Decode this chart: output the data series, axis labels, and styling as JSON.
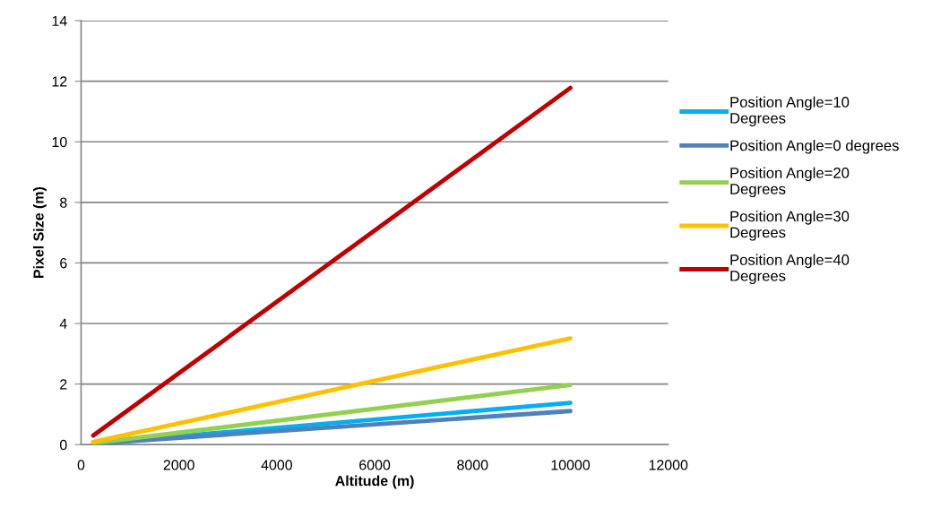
{
  "chart_data": {
    "type": "line",
    "xlabel": "Altitude (m)",
    "ylabel": "Pixel Size (m)",
    "xlim": [
      0,
      12000
    ],
    "xticks": [
      0,
      2000,
      4000,
      6000,
      8000,
      10000,
      12000
    ],
    "ylim": [
      0,
      14
    ],
    "yticks": [
      0,
      2,
      4,
      6,
      8,
      10,
      12,
      14
    ],
    "grid": "y",
    "legend": "right",
    "marker": "none",
    "line_style": "solid",
    "x": [
      250,
      10000
    ],
    "series": [
      {
        "name": "Position Angle=10 Degrees",
        "color": "#00b0f0",
        "values": [
          0.04,
          1.38
        ]
      },
      {
        "name": "Position Angle=0 degrees",
        "color": "#4f81bd",
        "values": [
          0.03,
          1.11
        ]
      },
      {
        "name": "Position Angle=20 Degrees",
        "color": "#92d050",
        "values": [
          0.05,
          1.97
        ]
      },
      {
        "name": "Position Angle=30 Degrees",
        "color": "#ffc000",
        "values": [
          0.09,
          3.51
        ]
      },
      {
        "name": "Position Angle=40 Degrees",
        "color": "#c00000",
        "values": [
          0.3,
          11.78
        ]
      }
    ]
  }
}
